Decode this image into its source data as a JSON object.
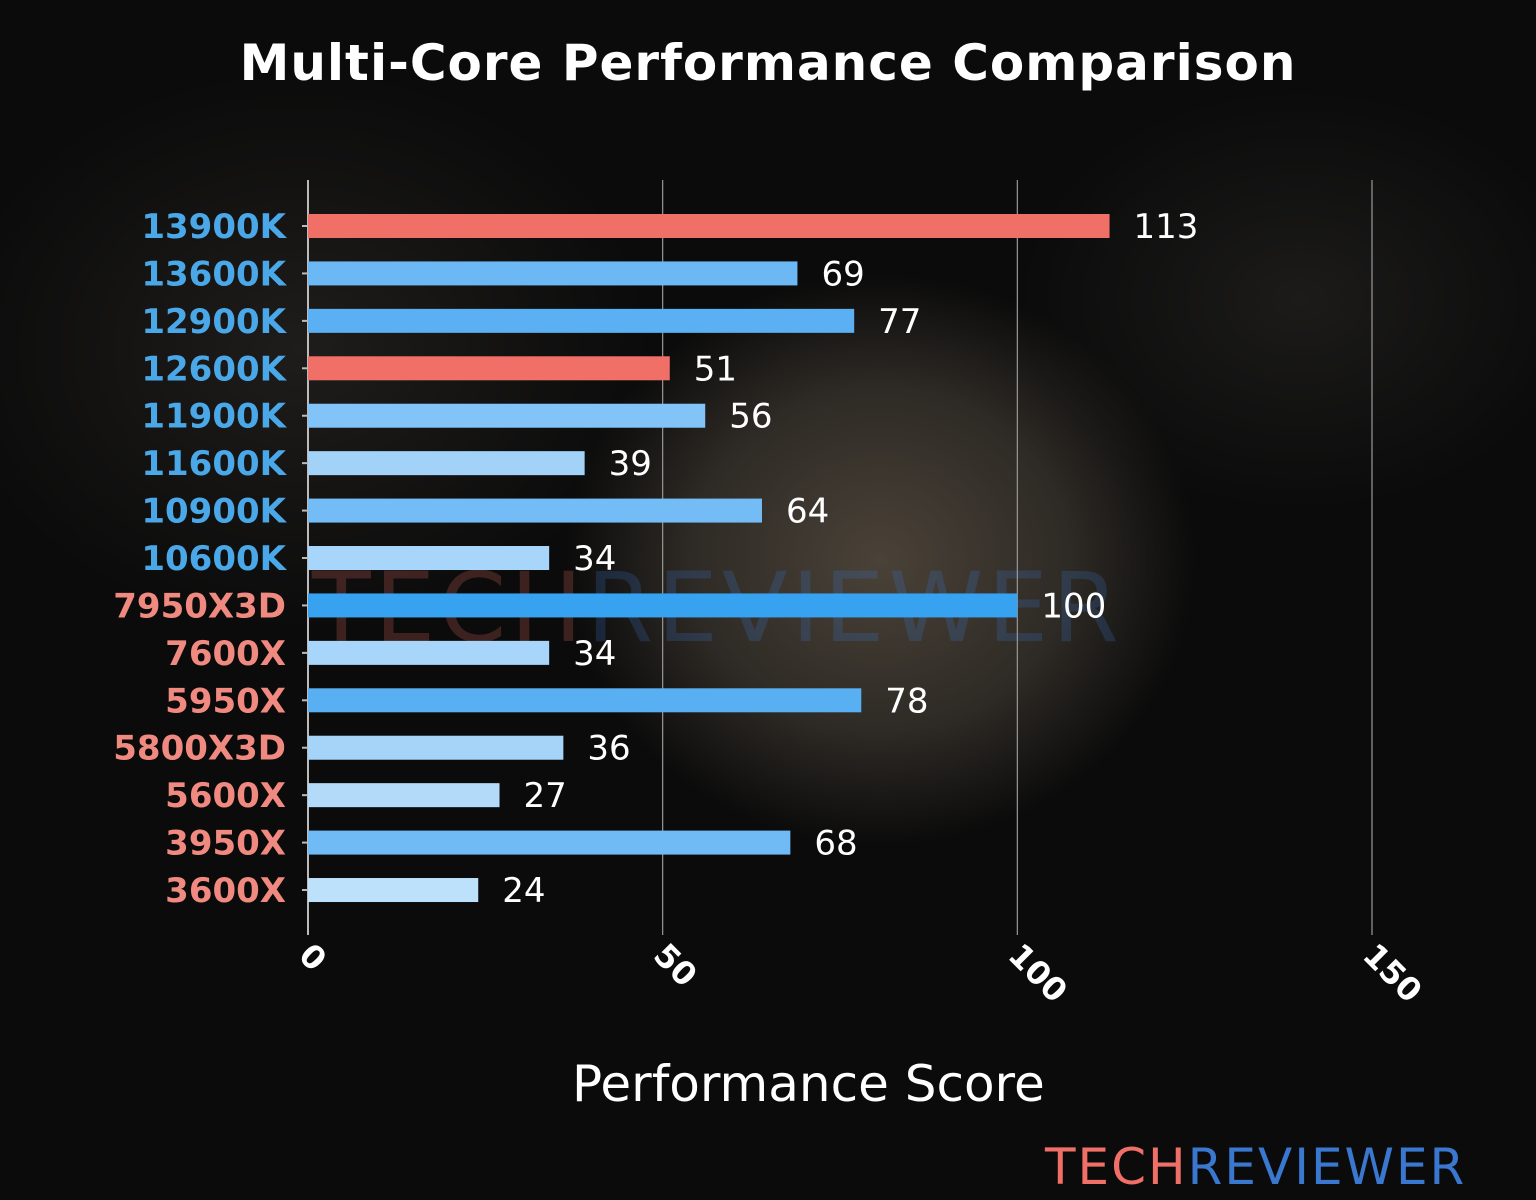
{
  "chart_data": {
    "type": "bar",
    "orientation": "horizontal",
    "title": "Multi-Core Performance Comparison",
    "xlabel": "Performance Score",
    "ylabel": "",
    "xlim": [
      0,
      150
    ],
    "xticks": [
      0,
      50,
      100,
      150
    ],
    "grid": "vertical",
    "categories": [
      "13900K",
      "13600K",
      "12900K",
      "12600K",
      "11900K",
      "11600K",
      "10900K",
      "10600K",
      "7950X3D",
      "7600X",
      "5950X",
      "5800X3D",
      "5600X",
      "3950X",
      "3600X"
    ],
    "values": [
      113,
      69,
      77,
      51,
      56,
      39,
      64,
      34,
      100,
      34,
      78,
      36,
      27,
      68,
      24
    ],
    "bar_colors": [
      "#f07068",
      "#6cb8f5",
      "#5ab0f3",
      "#f07068",
      "#82c4f7",
      "#a2d2f8",
      "#74bcf6",
      "#a8d6fa",
      "#36a2f0",
      "#a8d6fa",
      "#58aff2",
      "#a6d4f9",
      "#b4dafa",
      "#70baf5",
      "#bde0fb"
    ],
    "label_colors": [
      "#4aa8e8",
      "#4aa8e8",
      "#4aa8e8",
      "#4aa8e8",
      "#4aa8e8",
      "#4aa8e8",
      "#4aa8e8",
      "#4aa8e8",
      "#f08a80",
      "#f08a80",
      "#f08a80",
      "#f08a80",
      "#f08a80",
      "#f08a80",
      "#f08a80"
    ]
  },
  "watermark": {
    "part1": "TECH",
    "part2": "REVIEWER",
    "color1": "#f07068",
    "color2": "#3a78d0"
  }
}
